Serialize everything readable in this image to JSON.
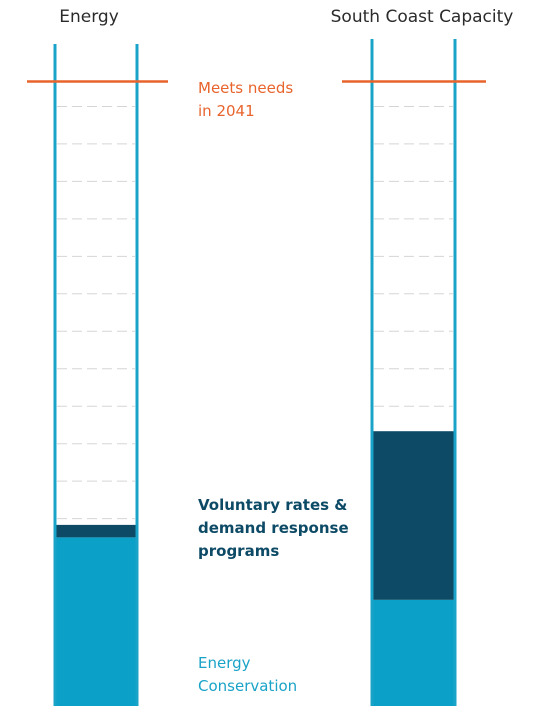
{
  "chart_data": {
    "type": "bar",
    "stacked": true,
    "categories": [
      "Energy",
      "South Coast Capacity"
    ],
    "series": [
      {
        "name": "Energy Conservation",
        "values": [
          27,
          17
        ],
        "color": "#0aa0c8"
      },
      {
        "name": "Voluntary rates & demand response programs",
        "values": [
          2,
          27
        ],
        "color": "#0d4a66"
      }
    ],
    "target": {
      "label_line1": "Meets needs",
      "label_line2": "in 2041",
      "value": 100,
      "color": "#e8642c"
    },
    "ylim": [
      0,
      106
    ],
    "tube_color": "#1aa3c8",
    "grid": true,
    "legend_position": "center"
  }
}
